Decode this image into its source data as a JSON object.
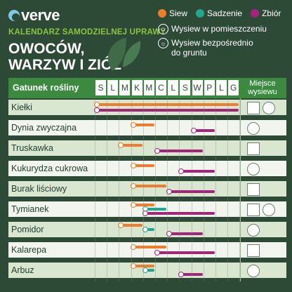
{
  "brand": {
    "name": "verve"
  },
  "subtitle": "KALENDARZ SAMODZIELNEJ UPRAWY",
  "title_line1": "OWOCÓW,",
  "title_line2": "WARZYW I ZIÓŁ",
  "legend": {
    "siew": "Siew",
    "sadzenie": "Sadzenie",
    "zbior": "Zbiór",
    "indoor": "Wysiew w pomieszczeniu",
    "outdoor_line1": "Wysiew bezpośrednio",
    "outdoor_line2": "do gruntu"
  },
  "colors": {
    "siew": "#ef7d2c",
    "sadzenie": "#1fa88c",
    "zbior": "#a4247c",
    "header": "#3b8a3f",
    "background": "#2d4a36"
  },
  "table": {
    "header_label": "Gatunek rośliny",
    "months": [
      "S",
      "L",
      "M",
      "K",
      "M",
      "C",
      "L",
      "S",
      "W",
      "P",
      "L",
      "G"
    ],
    "place_header_line1": "Miejsce",
    "place_header_line2": "wysiewu",
    "rows": [
      {
        "name": "Kiełki",
        "siew": [
          1,
          12
        ],
        "sadzenie": null,
        "zbior": [
          1,
          12
        ],
        "icons": [
          "house-icon",
          "sun-icon"
        ]
      },
      {
        "name": "Dynia zwyczajna",
        "siew": [
          4,
          5
        ],
        "sadzenie": null,
        "zbior": [
          9,
          10
        ],
        "icons": [
          "sun-icon"
        ]
      },
      {
        "name": "Truskawka",
        "siew": [
          3,
          4
        ],
        "sadzenie": null,
        "zbior": [
          6,
          9
        ],
        "icons": [
          "house-icon"
        ]
      },
      {
        "name": "Kukurydza cukrowa",
        "siew": [
          4,
          5
        ],
        "sadzenie": null,
        "zbior": [
          8,
          10
        ],
        "icons": [
          "sun-icon"
        ]
      },
      {
        "name": "Burak liściowy",
        "siew": [
          4,
          6
        ],
        "sadzenie": null,
        "zbior": [
          7,
          10
        ],
        "icons": [
          "house-icon"
        ]
      },
      {
        "name": "Tymianek",
        "siew": [
          4,
          5
        ],
        "sadzenie": [
          5,
          6
        ],
        "zbior": [
          5,
          10
        ],
        "icons": [
          "house-icon",
          "sun-icon"
        ]
      },
      {
        "name": "Pomidor",
        "siew": [
          3,
          4
        ],
        "sadzenie": [
          5,
          5
        ],
        "zbior": [
          7,
          9
        ],
        "icons": [
          "sun-icon"
        ]
      },
      {
        "name": "Kalarepa",
        "siew": [
          4,
          6
        ],
        "sadzenie": null,
        "zbior": [
          6,
          10
        ],
        "icons": [
          "house-icon"
        ]
      },
      {
        "name": "Arbuz",
        "siew": [
          4,
          5
        ],
        "sadzenie": [
          5,
          5
        ],
        "zbior": [
          8,
          9
        ],
        "icons": [
          "sun-icon"
        ]
      }
    ]
  }
}
